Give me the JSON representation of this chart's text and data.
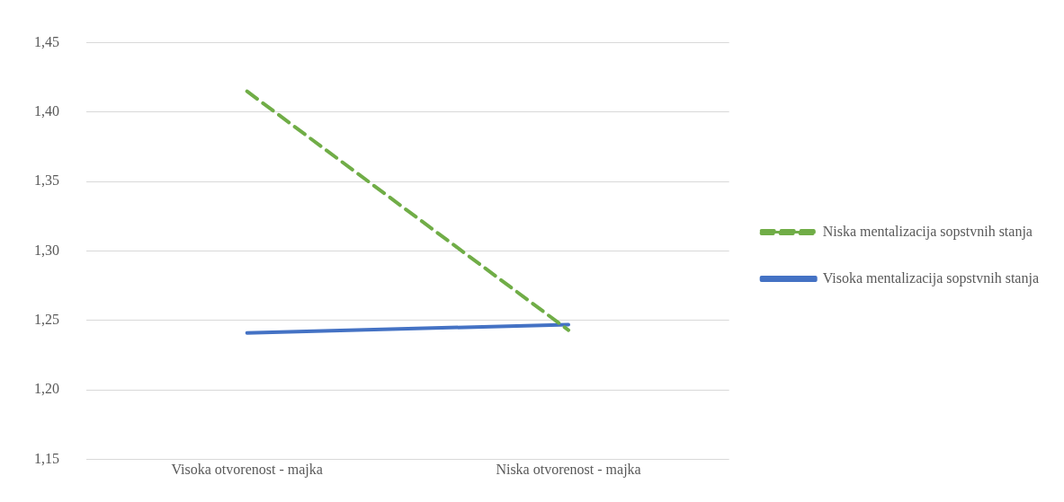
{
  "chart_data": {
    "type": "line",
    "categories": [
      "Visoka otvorenost - majka",
      "Niska otvorenost - majka"
    ],
    "series": [
      {
        "name": "Niska mentalizacija sopstvnih stanja",
        "color": "#70ad47",
        "values": [
          1.415,
          1.243
        ],
        "line_style": "dashed"
      },
      {
        "name": "Visoka mentalizacija sopstvnih stanja",
        "color": "#4472c4",
        "values": [
          1.241,
          1.247
        ],
        "line_style": "solid"
      }
    ],
    "ylim": [
      1.15,
      1.45
    ],
    "yticks": [
      {
        "value": 1.15,
        "label": "1,15"
      },
      {
        "value": 1.2,
        "label": "1,20"
      },
      {
        "value": 1.25,
        "label": "1,25"
      },
      {
        "value": 1.3,
        "label": "1,30"
      },
      {
        "value": 1.35,
        "label": "1,35"
      },
      {
        "value": 1.4,
        "label": "1,40"
      },
      {
        "value": 1.45,
        "label": "1,45"
      }
    ],
    "grid": "y",
    "legend": "right",
    "marker": "none"
  }
}
